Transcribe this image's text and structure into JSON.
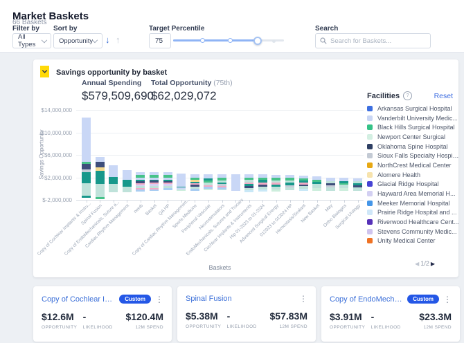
{
  "page": {
    "title": "Market Baskets",
    "subtitle": "66 Baskets"
  },
  "icons": {
    "sort_desc": "↓",
    "sort_asc": "↑",
    "kebab": "⋮",
    "pager_prev": "◀",
    "pager_next": "▶",
    "help": "?"
  },
  "filters": {
    "filter_by_label": "Filter by",
    "filter_by_value": "All Types",
    "sort_by_label": "Sort by",
    "sort_by_value": "Opportunity",
    "target_percentile_label": "Target Percentile",
    "target_percentile_value": "75",
    "search_label": "Search",
    "search_placeholder": "Search for Baskets..."
  },
  "chart_card": {
    "title": "Savings opportunity by basket",
    "annual_spending_label": "Annual Spending",
    "annual_spending_value": "$579,509,690",
    "total_opportunity_label": "Total Opportunity",
    "total_opportunity_suffix": "(75th)",
    "total_opportunity_value": "$62,029,072",
    "facilities_label": "Facilities",
    "reset_label": "Reset",
    "pagination": "1/2",
    "legend": [
      {
        "name": "Arkansas Surgical Hospital",
        "color": "#3d6fe0"
      },
      {
        "name": "Vanderbilt University Medic...",
        "color": "#c9d6f4"
      },
      {
        "name": "Black Hills Surgical Hospital",
        "color": "#35c287"
      },
      {
        "name": "Newport Center Surgical",
        "color": "#d3efe2"
      },
      {
        "name": "Oklahoma Spine Hospital",
        "color": "#2e3f63"
      },
      {
        "name": "Sioux Falls Specialty Hospital",
        "color": "#c3cad4"
      },
      {
        "name": "NorthCrest Medical Center",
        "color": "#e7a813"
      },
      {
        "name": "Alomere Health",
        "color": "#f7e3ad"
      },
      {
        "name": "Glacial Ridge Hospital",
        "color": "#4643d4"
      },
      {
        "name": "Hayward Area Memorial H...",
        "color": "#d3d0f2"
      },
      {
        "name": "Meeker Memorial Hospital",
        "color": "#4596e8"
      },
      {
        "name": "Prairie Ridge Hospital and ...",
        "color": "#cfe7f8"
      },
      {
        "name": "Riverwood Healthcare Cent...",
        "color": "#5631b8"
      },
      {
        "name": "Stevens Community Medic...",
        "color": "#cfc4ee"
      },
      {
        "name": "Unity Medical Center",
        "color": "#ef7224"
      }
    ]
  },
  "chart_data": {
    "type": "bar",
    "stacked": true,
    "title": "Savings opportunity by basket",
    "xlabel": "Baskets",
    "ylabel": "Savings Opportunity",
    "ylim": [
      -2000000,
      14000000
    ],
    "y_ticks": [
      14000000,
      10000000,
      6000000,
      2000000,
      -2000000
    ],
    "y_tick_labels": [
      "$14,000,000",
      "$10,000,000",
      "$6,000,000",
      "$2,000,000",
      "$-2,000,000"
    ],
    "palette": {
      "P": "#c9d7f6",
      "N": "#3e4e7b",
      "T": "#17988b",
      "LT": "#bfe2da",
      "G": "#46c289",
      "LG": "#cdeedd",
      "Y": "#f3d88f",
      "PK": "#f2aac5",
      "LV": "#d6d1f4",
      "GY": "#c5cdd8",
      "C": "#c9e8f7",
      "LB": "#a9cdf2"
    },
    "categories": [
      "Copy of Cochlear Implants & Instru...",
      "Spinal Fusion",
      "Copy of EndoMechanicals, Suture a...",
      "Cardiac Rhythm Management",
      "newb",
      "Basket",
      "QA HP",
      "Copy of Cardiac Rhythm Managemen...",
      "Sports Medicine",
      "Peripheral Vascular",
      "Neurostimulators",
      "EndoMechanicals, Sutures and Trocars",
      "Cochlear Implants & Instruments",
      "Hip 01-2023 to 01-2024",
      "Advanced Surgical Energy",
      "012023 to 012024 HP",
      "Hemostasis/Sealant",
      "New Basket",
      "May",
      "Ortho Biologics",
      "Surgical Urology"
    ],
    "bars": [
      {
        "top": 12700000,
        "segments": [
          [
            "P",
            7900000
          ],
          [
            "G",
            350000
          ],
          [
            "N",
            1000000
          ],
          [
            "GY",
            500000
          ],
          [
            "T",
            2000000
          ],
          [
            "LT",
            2200000
          ],
          [
            "T",
            350000
          ]
        ]
      },
      {
        "top": 5630000,
        "segments": [
          [
            "P",
            900000
          ],
          [
            "N",
            1000000
          ],
          [
            "Y",
            600000
          ],
          [
            "T",
            2300000
          ],
          [
            "LT",
            2300000
          ],
          [
            "G",
            400000
          ]
        ]
      },
      {
        "top": 4100000,
        "segments": [
          [
            "P",
            2000000
          ],
          [
            "T",
            1300000
          ],
          [
            "LT",
            1400000
          ]
        ]
      },
      {
        "top": 3300000,
        "segments": [
          [
            "P",
            1700000
          ],
          [
            "T",
            1200000
          ],
          [
            "LT",
            1000000
          ]
        ]
      },
      {
        "top": 2900000,
        "segments": [
          [
            "P",
            500000
          ],
          [
            "G",
            400000
          ],
          [
            "P",
            450000
          ],
          [
            "T",
            200000
          ],
          [
            "N",
            350000
          ],
          [
            "PK",
            250000
          ],
          [
            "LV",
            300000
          ],
          [
            "LT",
            400000
          ],
          [
            "PK",
            200000
          ],
          [
            "LB",
            350000
          ]
        ]
      },
      {
        "top": 2900000,
        "segments": [
          [
            "P",
            500000
          ],
          [
            "G",
            400000
          ],
          [
            "P",
            400000
          ],
          [
            "T",
            200000
          ],
          [
            "N",
            350000
          ],
          [
            "PK",
            250000
          ],
          [
            "LV",
            300000
          ],
          [
            "LT",
            450000
          ],
          [
            "PK",
            200000
          ],
          [
            "LB",
            300000
          ]
        ]
      },
      {
        "top": 2900000,
        "segments": [
          [
            "P",
            500000
          ],
          [
            "G",
            400000
          ],
          [
            "P",
            450000
          ],
          [
            "T",
            200000
          ],
          [
            "N",
            300000
          ],
          [
            "PK",
            250000
          ],
          [
            "LV",
            300000
          ],
          [
            "LT",
            400000
          ],
          [
            "LB",
            350000
          ]
        ]
      },
      {
        "top": 2700000,
        "segments": [
          [
            "P",
            2300000
          ],
          [
            "T",
            150000
          ],
          [
            "P",
            400000
          ],
          [
            "LG",
            250000
          ]
        ]
      },
      {
        "top": 2500000,
        "segments": [
          [
            "P",
            600000
          ],
          [
            "G",
            350000
          ],
          [
            "Y",
            300000
          ],
          [
            "T",
            300000
          ],
          [
            "PK",
            250000
          ],
          [
            "N",
            300000
          ],
          [
            "LT",
            450000
          ],
          [
            "LB",
            350000
          ]
        ]
      },
      {
        "top": 2500000,
        "segments": [
          [
            "P",
            700000
          ],
          [
            "T",
            400000
          ],
          [
            "G",
            300000
          ],
          [
            "LT",
            500000
          ],
          [
            "PK",
            250000
          ],
          [
            "LB",
            400000
          ],
          [
            "LG",
            250000
          ]
        ]
      },
      {
        "top": 2500000,
        "segments": [
          [
            "P",
            600000
          ],
          [
            "G",
            400000
          ],
          [
            "LT",
            400000
          ],
          [
            "T",
            300000
          ],
          [
            "GY",
            300000
          ],
          [
            "PK",
            250000
          ],
          [
            "LB",
            350000
          ],
          [
            "LG",
            200000
          ]
        ]
      },
      {
        "top": 2600000,
        "segments": [
          [
            "P",
            3000000
          ]
        ]
      },
      {
        "top": 2500000,
        "segments": [
          [
            "P",
            550000
          ],
          [
            "G",
            400000
          ],
          [
            "LT",
            450000
          ],
          [
            "PK",
            300000
          ],
          [
            "T",
            350000
          ],
          [
            "N",
            300000
          ],
          [
            "LT",
            450000
          ],
          [
            "C",
            300000
          ]
        ]
      },
      {
        "top": 2500000,
        "segments": [
          [
            "P",
            500000
          ],
          [
            "G",
            450000
          ],
          [
            "T",
            500000
          ],
          [
            "PK",
            300000
          ],
          [
            "N",
            350000
          ],
          [
            "LT",
            500000
          ],
          [
            "C",
            400000
          ]
        ]
      },
      {
        "top": 2400000,
        "segments": [
          [
            "P",
            500000
          ],
          [
            "G",
            450000
          ],
          [
            "LT",
            400000
          ],
          [
            "PK",
            300000
          ],
          [
            "T",
            400000
          ],
          [
            "LT",
            550000
          ],
          [
            "LG",
            300000
          ]
        ]
      },
      {
        "top": 2400000,
        "segments": [
          [
            "P",
            500000
          ],
          [
            "G",
            400000
          ],
          [
            "LT",
            450000
          ],
          [
            "T",
            500000
          ],
          [
            "GY",
            300000
          ],
          [
            "LT",
            550000
          ]
        ]
      },
      {
        "top": 2300000,
        "segments": [
          [
            "P",
            450000
          ],
          [
            "G",
            400000
          ],
          [
            "T",
            400000
          ],
          [
            "PK",
            300000
          ],
          [
            "N",
            300000
          ],
          [
            "LT",
            500000
          ],
          [
            "C",
            350000
          ]
        ]
      },
      {
        "top": 2200000,
        "segments": [
          [
            "P",
            600000
          ],
          [
            "G",
            350000
          ],
          [
            "T",
            400000
          ],
          [
            "LT",
            700000
          ],
          [
            "LG",
            550000
          ]
        ]
      },
      {
        "top": 2000000,
        "segments": [
          [
            "P",
            700000
          ],
          [
            "LT",
            400000
          ],
          [
            "N",
            350000
          ],
          [
            "GY",
            300000
          ],
          [
            "LT",
            650000
          ]
        ]
      },
      {
        "top": 1900000,
        "segments": [
          [
            "P",
            600000
          ],
          [
            "T",
            350000
          ],
          [
            "G",
            300000
          ],
          [
            "LT",
            600000
          ],
          [
            "LG",
            450000
          ]
        ]
      },
      {
        "top": 1800000,
        "segments": [
          [
            "P",
            500000
          ],
          [
            "LT",
            400000
          ],
          [
            "T",
            350000
          ],
          [
            "N",
            300000
          ],
          [
            "LT",
            650000
          ]
        ]
      }
    ]
  },
  "cards": [
    {
      "title": "Copy of Cochlear Impl...",
      "badge": "Custom",
      "opportunity": "$12.6M",
      "likelihood": "-",
      "spend": "$120.4M"
    },
    {
      "title": "Spinal Fusion",
      "badge": "",
      "opportunity": "$5.38M",
      "likelihood": "-",
      "spend": "$57.83M"
    },
    {
      "title": "Copy of EndoMechanic...",
      "badge": "Custom",
      "opportunity": "$3.91M",
      "likelihood": "-",
      "spend": "$23.3M"
    }
  ],
  "card_labels": {
    "opportunity": "OPPORTUNITY",
    "likelihood": "LIKELIHOOD",
    "spend": "12M SPEND"
  }
}
